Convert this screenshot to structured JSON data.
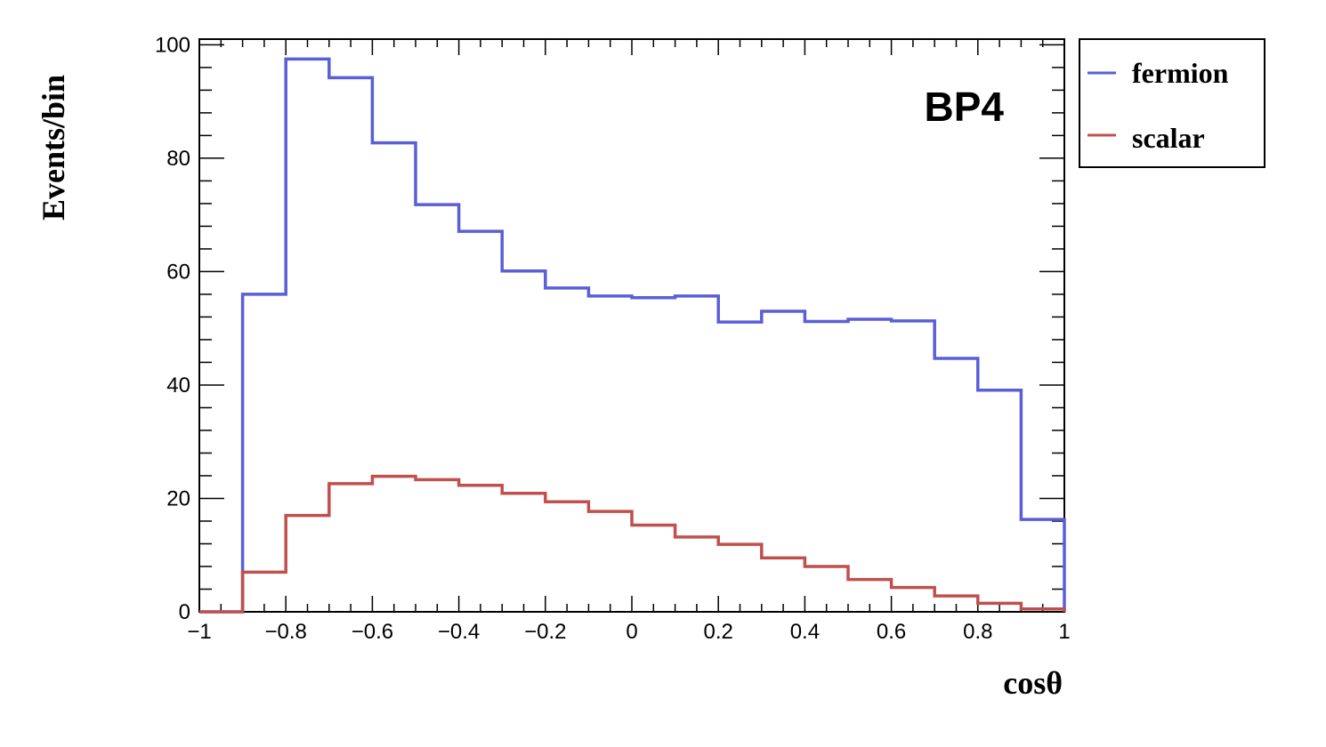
{
  "chart_data": {
    "type": "line",
    "style": "step-histogram",
    "xlabel": "cosθ",
    "ylabel": "Events/bin",
    "xlim": [
      -1,
      1
    ],
    "ylim": [
      0,
      101
    ],
    "x_ticks": [
      -1,
      -0.8,
      -0.6,
      -0.4,
      -0.2,
      0,
      0.2,
      0.4,
      0.6,
      0.8,
      1
    ],
    "x_tick_labels": [
      "−1",
      "−0.8",
      "−0.6",
      "−0.4",
      "−0.2",
      "0",
      "0.2",
      "0.4",
      "0.6",
      "0.8",
      "1"
    ],
    "y_ticks": [
      0,
      20,
      40,
      60,
      80,
      100
    ],
    "y_tick_labels": [
      "0",
      "20",
      "40",
      "60",
      "80",
      "100"
    ],
    "bin_edges": [
      -1,
      -0.9,
      -0.8,
      -0.7,
      -0.6,
      -0.5,
      -0.4,
      -0.3,
      -0.2,
      -0.1,
      0,
      0.1,
      0.2,
      0.3,
      0.4,
      0.5,
      0.6,
      0.7,
      0.8,
      0.9,
      1
    ],
    "series": [
      {
        "name": "fermion",
        "color": "#5a5fd6",
        "values": [
          0,
          56,
          97.5,
          94.2,
          82.7,
          71.8,
          67.1,
          60.1,
          57.1,
          55.7,
          55.4,
          55.7,
          51.1,
          53,
          51.2,
          51.6,
          51.3,
          44.7,
          39.1,
          16.3
        ]
      },
      {
        "name": "scalar",
        "color": "#c0504d",
        "values": [
          0,
          7,
          17,
          22.6,
          23.9,
          23.3,
          22.3,
          20.9,
          19.4,
          17.7,
          15.3,
          13.2,
          11.9,
          9.5,
          8,
          5.7,
          4.3,
          2.8,
          1.5,
          0.5
        ]
      }
    ],
    "legend": {
      "position": "outside-top-right",
      "entries": [
        "fermion",
        "scalar"
      ]
    },
    "annotations": [
      {
        "text": "BP4",
        "position": "top-right"
      }
    ],
    "grid": false
  }
}
